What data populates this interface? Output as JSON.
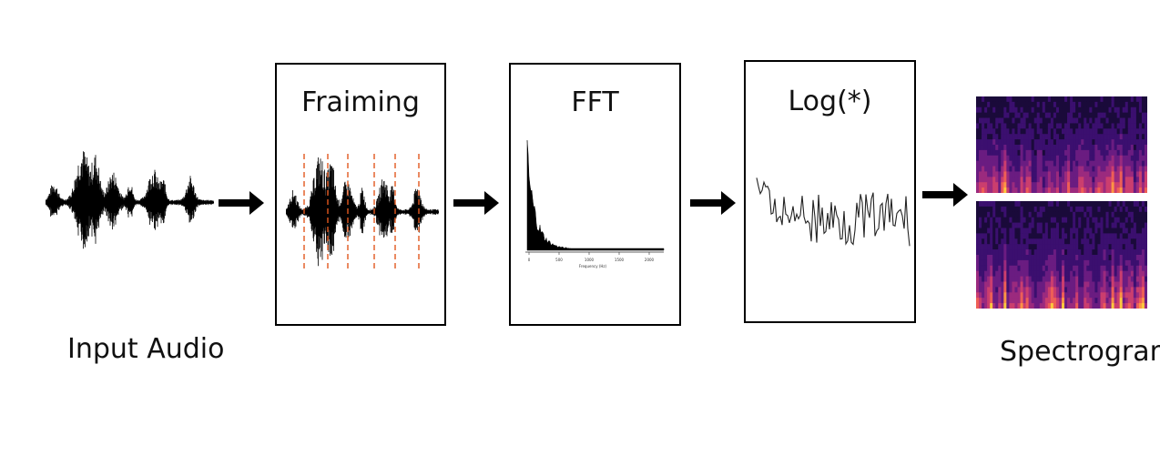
{
  "stages": {
    "input": {
      "label": "Input Audio"
    },
    "framing": {
      "title": "Fraiming"
    },
    "fft": {
      "title": "FFT"
    },
    "log": {
      "title": "Log(*)"
    },
    "output": {
      "label": "Spectrogram"
    }
  },
  "colors": {
    "waveform": "#000000",
    "frame_marker": "#e2571e",
    "spectrogram_low": "#2b0b4a",
    "spectrogram_high": "#fbb83a",
    "arrow": "#000000"
  },
  "fft_axis_ticks": [
    "0",
    "500",
    "1000",
    "1500",
    "2000"
  ],
  "fft_axis_label": "Frequency (Hz)"
}
